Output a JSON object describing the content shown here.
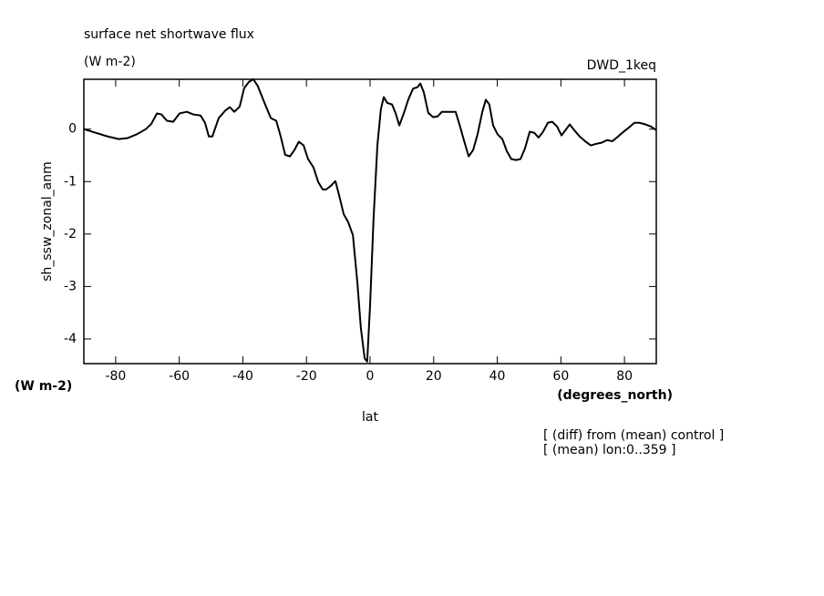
{
  "chart_data": {
    "type": "line",
    "title": "surface net shortwave flux",
    "subtitle": "(W m-2)",
    "annotation": "DWD_1keq",
    "ylabel": "sh_ssw_zonal_anm",
    "y_units": "(W m-2)",
    "xlabel": "lat",
    "x_units": "(degrees_north)",
    "notes": [
      "[ (diff) from (mean) control ]",
      "[ (mean) lon:0..359 ]"
    ],
    "xlim": [
      -90,
      90
    ],
    "xticks": [
      -80,
      -60,
      -40,
      -20,
      0,
      20,
      40,
      60,
      80
    ],
    "ylim": [
      -4.47,
      0.95
    ],
    "yticks": [
      -4,
      -3,
      -2,
      -1,
      0
    ],
    "color": "#000000",
    "x": [
      -90,
      -86.3,
      -82.5,
      -79,
      -76.2,
      -73.4,
      -70.5,
      -68.8,
      -67,
      -65.6,
      -63.9,
      -61.9,
      -59.9,
      -57.6,
      -55.6,
      -53.3,
      -51.9,
      -50.7,
      -49.6,
      -47.6,
      -45.6,
      -44.1,
      -42.7,
      -41,
      -39.6,
      -38.1,
      -36.7,
      -35.3,
      -33.2,
      -31.2,
      -29.5,
      -28.1,
      -26.7,
      -25.2,
      -23.8,
      -22.4,
      -20.9,
      -19.5,
      -17.8,
      -16.3,
      -14.9,
      -13.8,
      -12.3,
      -10.9,
      -9.7,
      -8.3,
      -6.9,
      -5.4,
      -4.0,
      -2.9,
      -1.7,
      -0.9,
      0,
      1.1,
      2.3,
      3.4,
      4.3,
      5.4,
      6.9,
      8.0,
      9.2,
      10.6,
      12.0,
      13.5,
      14.9,
      15.8,
      16.9,
      18.3,
      19.8,
      21.2,
      22.6,
      25.5,
      26.9,
      28.4,
      29.5,
      31.0,
      32.4,
      33.8,
      35.3,
      36.4,
      37.5,
      38.7,
      40.1,
      41.6,
      43.0,
      44.4,
      45.9,
      47.3,
      48.7,
      50.2,
      51.6,
      53.0,
      54.4,
      55.9,
      57.3,
      58.8,
      60.2,
      61.3,
      62.8,
      64.2,
      65.9,
      67.6,
      69.4,
      71.1,
      72.8,
      74.5,
      76.2,
      78.0,
      79.7,
      81.4,
      83.1,
      84.8,
      86.6,
      88.3,
      90
    ],
    "values": [
      0,
      -0.07,
      -0.14,
      -0.19,
      -0.17,
      -0.1,
      0,
      0.1,
      0.3,
      0.28,
      0.16,
      0.14,
      0.3,
      0.33,
      0.28,
      0.26,
      0.12,
      -0.14,
      -0.14,
      0.21,
      0.35,
      0.42,
      0.33,
      0.43,
      0.78,
      0.9,
      0.95,
      0.82,
      0.5,
      0.21,
      0.16,
      -0.14,
      -0.49,
      -0.52,
      -0.4,
      -0.24,
      -0.31,
      -0.57,
      -0.73,
      -1.01,
      -1.15,
      -1.15,
      -1.08,
      -0.99,
      -1.27,
      -1.62,
      -1.77,
      -2.02,
      -2.92,
      -3.79,
      -4.37,
      -4.43,
      -3.36,
      -1.7,
      -0.31,
      0.38,
      0.61,
      0.5,
      0.47,
      0.31,
      0.07,
      0.3,
      0.56,
      0.77,
      0.8,
      0.87,
      0.7,
      0.31,
      0.23,
      0.24,
      0.33,
      0.33,
      0.33,
      0.03,
      -0.21,
      -0.52,
      -0.4,
      -0.1,
      0.33,
      0.56,
      0.47,
      0.07,
      -0.1,
      -0.19,
      -0.42,
      -0.57,
      -0.59,
      -0.57,
      -0.37,
      -0.05,
      -0.07,
      -0.16,
      -0.05,
      0.12,
      0.14,
      0.05,
      -0.12,
      -0.03,
      0.09,
      -0.02,
      -0.14,
      -0.23,
      -0.31,
      -0.28,
      -0.26,
      -0.21,
      -0.23,
      -0.14,
      -0.05,
      0.03,
      0.12,
      0.12,
      0.09,
      0.05,
      -0.02
    ]
  }
}
